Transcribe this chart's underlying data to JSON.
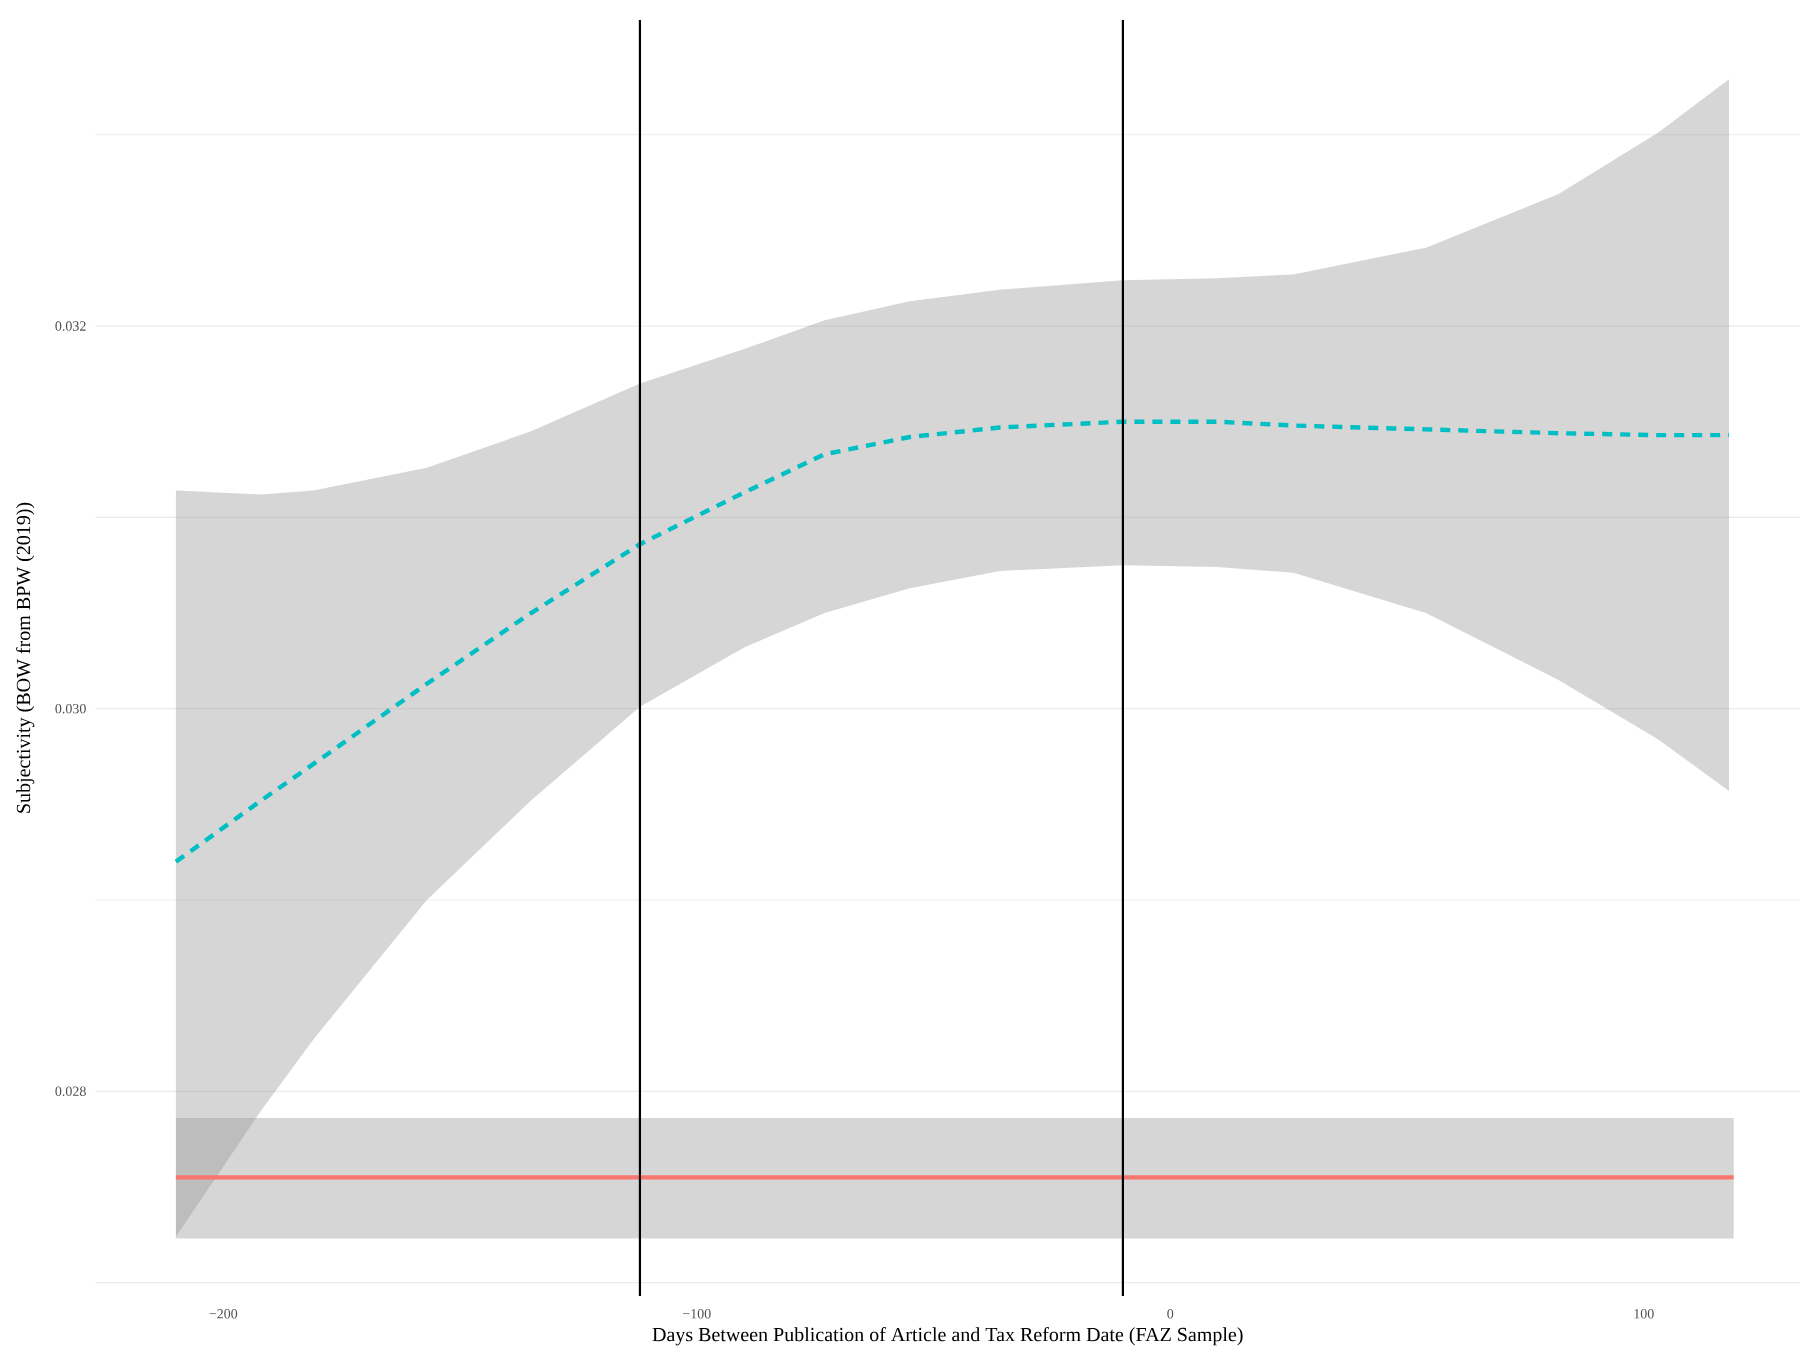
{
  "chart_data": {
    "type": "line",
    "xlabel": "Days Between Publication of Article and Tax Reform Date (FAZ Sample)",
    "ylabel": "Subjectivity (BOW from BPW (2019))",
    "xlim": [
      -227,
      133
    ],
    "ylim": [
      0.02693,
      0.0336
    ],
    "xticks": [
      {
        "value": -200,
        "label": "−200"
      },
      {
        "value": -100,
        "label": "−100"
      },
      0,
      100
    ],
    "yticks": [
      {
        "value": 0.027,
        "label": null
      },
      {
        "value": 0.028,
        "label": "0.028"
      },
      {
        "value": 0.029,
        "label": null
      },
      {
        "value": 0.03,
        "label": "0.030"
      },
      {
        "value": 0.031,
        "label": null
      },
      {
        "value": 0.032,
        "label": "0.032"
      },
      {
        "value": 0.033,
        "label": null
      }
    ],
    "grid": "y",
    "series": [
      {
        "color": "#f8766d",
        "line_style": "solid",
        "x": [
          -210,
          119
        ],
        "values": [
          0.02755,
          0.02755
        ],
        "lower": [
          0.02723,
          0.02723
        ],
        "upper": [
          0.02786,
          0.02786
        ]
      },
      {
        "color": "#00bfc4",
        "line_style": "dashed",
        "x": [
          -210,
          -192,
          -181,
          -157,
          -135,
          -112,
          -90,
          -73,
          -55,
          -36,
          -10,
          10,
          26,
          54,
          82,
          103,
          118
        ],
        "values": [
          0.0292,
          0.02952,
          0.02971,
          0.03013,
          0.0305,
          0.03086,
          0.03113,
          0.03133,
          0.03142,
          0.03147,
          0.0315,
          0.0315,
          0.03148,
          0.03146,
          0.03144,
          0.03143,
          0.03143
        ],
        "lower": [
          0.02724,
          0.0279,
          0.02827,
          0.029,
          0.02952,
          0.03001,
          0.03032,
          0.0305,
          0.03063,
          0.03072,
          0.03075,
          0.03074,
          0.03071,
          0.0305,
          0.03015,
          0.02984,
          0.02957
        ],
        "upper": [
          0.03114,
          0.03112,
          0.03114,
          0.03126,
          0.03145,
          0.0317,
          0.03188,
          0.03203,
          0.03213,
          0.03219,
          0.03224,
          0.03225,
          0.03227,
          0.03241,
          0.03269,
          0.03301,
          0.03329
        ]
      }
    ],
    "ref_lines": [
      {
        "axis": "x",
        "value": -112,
        "color": "#000000"
      },
      {
        "axis": "x",
        "value": -10,
        "color": "#000000"
      }
    ]
  }
}
